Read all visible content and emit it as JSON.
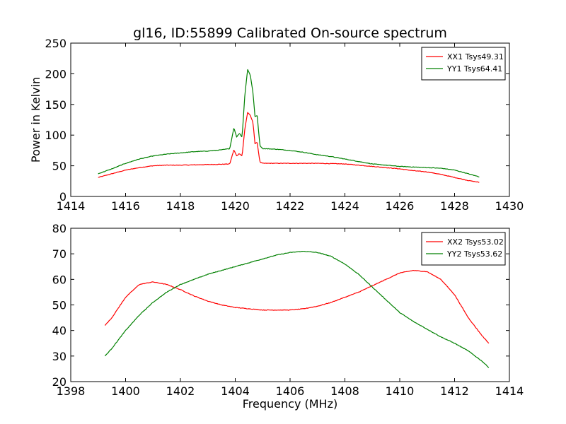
{
  "figure": {
    "title": "gl16, ID:55899 Calibrated On-source spectrum"
  },
  "chart_data": [
    {
      "type": "line",
      "title": "gl16, ID:55899 Calibrated On-source spectrum",
      "xlabel": "",
      "ylabel": "Power in Kelvin",
      "xlim": [
        1414,
        1430
      ],
      "ylim": [
        0,
        250
      ],
      "xticks": [
        1414,
        1416,
        1418,
        1420,
        1422,
        1424,
        1426,
        1428,
        1430
      ],
      "yticks": [
        0,
        50,
        100,
        150,
        200,
        250
      ],
      "grid": false,
      "legend_position": "top-right",
      "series": [
        {
          "name": "XX1 Tsys49.31",
          "color": "#ff0000",
          "x": [
            1415.0,
            1415.5,
            1416.0,
            1416.5,
            1417.0,
            1417.5,
            1418.0,
            1418.5,
            1419.0,
            1419.5,
            1419.8,
            1419.95,
            1420.05,
            1420.15,
            1420.25,
            1420.35,
            1420.45,
            1420.55,
            1420.65,
            1420.72,
            1420.8,
            1420.9,
            1421.0,
            1421.5,
            1422.0,
            1422.5,
            1423.0,
            1423.5,
            1424.0,
            1424.5,
            1425.0,
            1425.5,
            1426.0,
            1426.5,
            1427.0,
            1427.5,
            1428.0,
            1428.5,
            1428.9
          ],
          "values": [
            31,
            37,
            43,
            47,
            50,
            51,
            51,
            51.5,
            52,
            52.5,
            53,
            76,
            66,
            70,
            66,
            110,
            137,
            132,
            120,
            86,
            88,
            56,
            54,
            54,
            54,
            54,
            54,
            53.5,
            53,
            51,
            49,
            47,
            45,
            42,
            40,
            36,
            31,
            26,
            23
          ]
        },
        {
          "name": "YY1 Tsys64.41",
          "color": "#008000",
          "x": [
            1415.0,
            1415.5,
            1416.0,
            1416.5,
            1417.0,
            1417.5,
            1418.0,
            1418.5,
            1419.0,
            1419.5,
            1419.8,
            1419.95,
            1420.05,
            1420.15,
            1420.25,
            1420.35,
            1420.45,
            1420.55,
            1420.65,
            1420.72,
            1420.8,
            1420.9,
            1421.0,
            1421.5,
            1422.0,
            1422.5,
            1423.0,
            1423.5,
            1424.0,
            1424.5,
            1425.0,
            1425.5,
            1426.0,
            1426.5,
            1427.0,
            1427.5,
            1428.0,
            1428.5,
            1428.9
          ],
          "values": [
            37,
            45,
            54,
            61,
            66,
            69,
            71,
            73,
            74,
            76,
            78,
            112,
            97,
            103,
            97,
            165,
            207,
            198,
            168,
            130,
            132,
            83,
            78,
            77,
            75,
            72,
            68,
            65,
            61,
            57,
            53,
            51,
            49,
            48,
            47,
            46,
            43,
            37,
            32
          ]
        }
      ]
    },
    {
      "type": "line",
      "title": "",
      "xlabel": "Frequency (MHz)",
      "ylabel": "",
      "xlim": [
        1398,
        1414
      ],
      "ylim": [
        20,
        80
      ],
      "xticks": [
        1398,
        1400,
        1402,
        1404,
        1406,
        1408,
        1410,
        1412,
        1414
      ],
      "yticks": [
        20,
        30,
        40,
        50,
        60,
        70,
        80
      ],
      "grid": false,
      "legend_position": "top-right",
      "series": [
        {
          "name": "XX2 Tsys53.02",
          "color": "#ff0000",
          "x": [
            1399.25,
            1399.5,
            1400.0,
            1400.5,
            1401.0,
            1401.5,
            1402.0,
            1402.5,
            1403.0,
            1403.5,
            1404.0,
            1404.5,
            1405.0,
            1405.5,
            1406.0,
            1406.5,
            1407.0,
            1407.5,
            1408.0,
            1408.5,
            1409.0,
            1409.5,
            1410.0,
            1410.5,
            1411.0,
            1411.5,
            1412.0,
            1412.5,
            1413.0,
            1413.25
          ],
          "values": [
            42,
            45,
            53,
            58,
            59,
            58,
            56,
            53.5,
            51.5,
            50,
            49,
            48.5,
            48,
            48,
            48,
            48.5,
            49.5,
            51,
            53,
            55,
            57.5,
            60,
            62.5,
            63.5,
            63,
            60,
            54,
            45,
            38,
            35
          ]
        },
        {
          "name": "YY2 Tsys53.62",
          "color": "#008000",
          "x": [
            1399.25,
            1399.5,
            1400.0,
            1400.5,
            1401.0,
            1401.5,
            1402.0,
            1402.5,
            1403.0,
            1403.5,
            1404.0,
            1404.5,
            1405.0,
            1405.5,
            1406.0,
            1406.5,
            1407.0,
            1407.5,
            1408.0,
            1408.5,
            1409.0,
            1409.5,
            1410.0,
            1410.5,
            1411.0,
            1411.5,
            1412.0,
            1412.5,
            1413.0,
            1413.25
          ],
          "values": [
            30,
            33,
            40,
            46,
            51,
            55,
            58,
            60,
            62,
            63.5,
            65,
            66.5,
            68,
            69.5,
            70.5,
            71,
            70.5,
            69,
            66,
            62,
            57,
            52,
            47,
            43.5,
            40.5,
            37.5,
            35,
            32,
            28,
            25.5
          ]
        }
      ]
    }
  ]
}
